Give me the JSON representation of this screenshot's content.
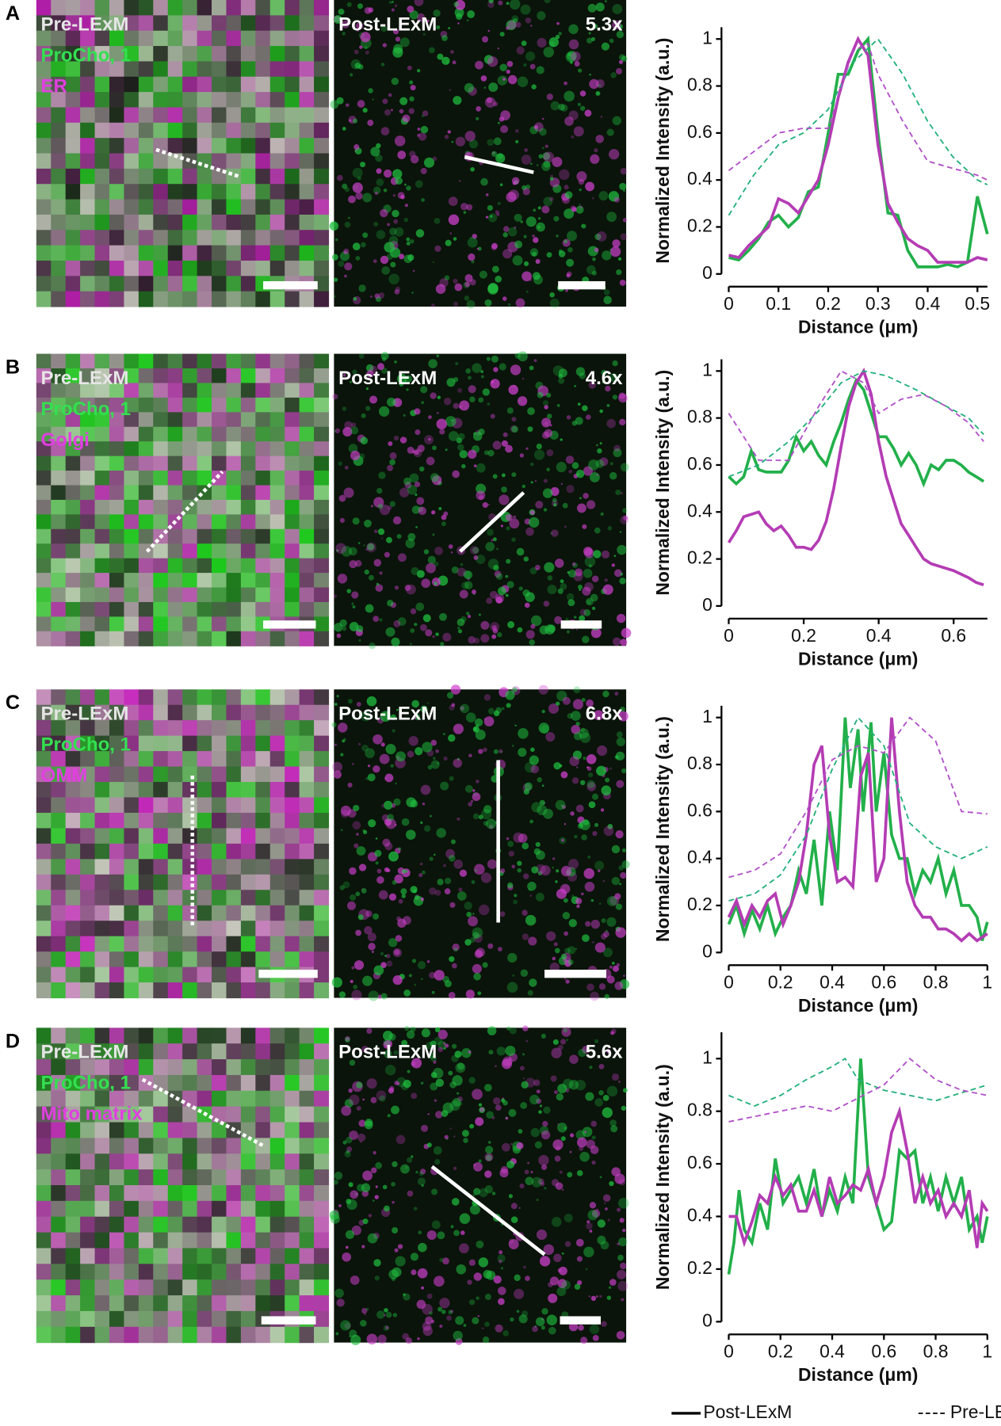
{
  "panels": [
    {
      "letter": "A",
      "pre": "Pre-LExM",
      "probe": "ProCho, 1",
      "target": "ER",
      "post": "Post-LExM",
      "factor": "5.3x"
    },
    {
      "letter": "B",
      "pre": "Pre-LExM",
      "probe": "ProCho, 1",
      "target": "Golgi",
      "post": "Post-LExM",
      "factor": "4.6x"
    },
    {
      "letter": "C",
      "pre": "Pre-LExM",
      "probe": "ProCho, 1",
      "target": "OMM",
      "post": "Post-LExM",
      "factor": "6.8x"
    },
    {
      "letter": "D",
      "pre": "Pre-LExM",
      "probe": "ProCho, 1",
      "target": "Mito matrix",
      "post": "Post-LExM",
      "factor": "5.6x"
    }
  ],
  "legend": [
    {
      "label": "Post-LExM",
      "dash": false
    },
    {
      "label": "Pre-LExM",
      "dash": true
    }
  ],
  "chart_data": [
    {
      "type": "line",
      "xlabel": "Distance (μm)",
      "ylabel": "Normalized Intensity (a.u.)",
      "xlim": [
        0,
        0.52
      ],
      "ylim": [
        0,
        1.05
      ],
      "xticks": [
        0,
        0.1,
        0.2,
        0.3,
        0.4,
        0.5
      ],
      "yticks": [
        0,
        0.2,
        0.4,
        0.6,
        0.8,
        1
      ],
      "series": [
        {
          "color": "#22b04a",
          "dash": false,
          "x": [
            0,
            0.02,
            0.04,
            0.06,
            0.08,
            0.1,
            0.12,
            0.14,
            0.16,
            0.18,
            0.2,
            0.22,
            0.24,
            0.26,
            0.28,
            0.3,
            0.32,
            0.34,
            0.36,
            0.38,
            0.4,
            0.42,
            0.44,
            0.46,
            0.48,
            0.5,
            0.52
          ],
          "values": [
            0.07,
            0.06,
            0.1,
            0.15,
            0.22,
            0.25,
            0.2,
            0.24,
            0.35,
            0.37,
            0.6,
            0.85,
            0.85,
            0.95,
            1.0,
            0.6,
            0.26,
            0.25,
            0.1,
            0.03,
            0.03,
            0.03,
            0.04,
            0.03,
            0.05,
            0.33,
            0.17
          ]
        },
        {
          "color": "#b43cb4",
          "dash": false,
          "x": [
            0,
            0.02,
            0.04,
            0.06,
            0.08,
            0.1,
            0.12,
            0.14,
            0.16,
            0.18,
            0.2,
            0.22,
            0.24,
            0.26,
            0.28,
            0.3,
            0.32,
            0.34,
            0.36,
            0.38,
            0.4,
            0.42,
            0.44,
            0.46,
            0.48,
            0.5,
            0.52
          ],
          "values": [
            0.08,
            0.07,
            0.12,
            0.16,
            0.2,
            0.32,
            0.3,
            0.26,
            0.33,
            0.4,
            0.55,
            0.75,
            0.9,
            1.0,
            0.93,
            0.55,
            0.3,
            0.22,
            0.15,
            0.12,
            0.1,
            0.05,
            0.05,
            0.05,
            0.05,
            0.07,
            0.06
          ]
        },
        {
          "color": "#22b07a",
          "dash": true,
          "x": [
            0,
            0.05,
            0.1,
            0.15,
            0.2,
            0.25,
            0.3,
            0.35,
            0.4,
            0.45,
            0.5,
            0.52
          ],
          "values": [
            0.25,
            0.42,
            0.55,
            0.6,
            0.7,
            0.9,
            1.0,
            0.85,
            0.65,
            0.5,
            0.4,
            0.38
          ]
        },
        {
          "color": "#b050c8",
          "dash": true,
          "x": [
            0,
            0.05,
            0.1,
            0.15,
            0.2,
            0.25,
            0.28,
            0.3,
            0.35,
            0.4,
            0.45,
            0.5,
            0.52
          ],
          "values": [
            0.44,
            0.52,
            0.6,
            0.62,
            0.62,
            0.95,
            0.98,
            0.85,
            0.65,
            0.48,
            0.45,
            0.42,
            0.4
          ]
        }
      ]
    },
    {
      "type": "line",
      "xlabel": "Distance (μm)",
      "ylabel": "Normalized Intensity (a.u.)",
      "xlim": [
        0,
        0.69
      ],
      "ylim": [
        0,
        1.05
      ],
      "xticks": [
        0,
        0.2,
        0.4,
        0.6
      ],
      "yticks": [
        0,
        0.2,
        0.4,
        0.6,
        0.8,
        1
      ],
      "series": [
        {
          "color": "#22b04a",
          "dash": false,
          "x": [
            0,
            0.02,
            0.04,
            0.06,
            0.08,
            0.1,
            0.12,
            0.14,
            0.16,
            0.18,
            0.2,
            0.22,
            0.24,
            0.26,
            0.28,
            0.3,
            0.32,
            0.34,
            0.36,
            0.38,
            0.4,
            0.42,
            0.44,
            0.46,
            0.48,
            0.5,
            0.52,
            0.54,
            0.56,
            0.58,
            0.6,
            0.62,
            0.64,
            0.66,
            0.68
          ],
          "values": [
            0.55,
            0.52,
            0.55,
            0.66,
            0.58,
            0.57,
            0.57,
            0.57,
            0.62,
            0.72,
            0.66,
            0.7,
            0.64,
            0.6,
            0.7,
            0.78,
            0.88,
            0.96,
            0.92,
            0.82,
            0.72,
            0.72,
            0.67,
            0.6,
            0.65,
            0.6,
            0.52,
            0.6,
            0.58,
            0.62,
            0.62,
            0.6,
            0.57,
            0.55,
            0.53
          ]
        },
        {
          "color": "#b43cb4",
          "dash": false,
          "x": [
            0,
            0.02,
            0.04,
            0.06,
            0.08,
            0.1,
            0.12,
            0.14,
            0.16,
            0.18,
            0.2,
            0.22,
            0.24,
            0.26,
            0.28,
            0.3,
            0.32,
            0.34,
            0.36,
            0.38,
            0.4,
            0.42,
            0.44,
            0.46,
            0.48,
            0.5,
            0.52,
            0.54,
            0.56,
            0.6,
            0.64,
            0.66,
            0.68
          ],
          "values": [
            0.27,
            0.32,
            0.38,
            0.39,
            0.4,
            0.35,
            0.32,
            0.34,
            0.3,
            0.25,
            0.25,
            0.24,
            0.28,
            0.36,
            0.5,
            0.68,
            0.85,
            0.95,
            1.0,
            0.9,
            0.7,
            0.55,
            0.45,
            0.35,
            0.3,
            0.25,
            0.2,
            0.18,
            0.17,
            0.15,
            0.12,
            0.1,
            0.09
          ]
        },
        {
          "color": "#22b07a",
          "dash": true,
          "x": [
            0,
            0.08,
            0.16,
            0.24,
            0.3,
            0.36,
            0.42,
            0.5,
            0.58,
            0.64,
            0.68
          ],
          "values": [
            0.55,
            0.6,
            0.7,
            0.83,
            0.95,
            1.0,
            0.98,
            0.92,
            0.85,
            0.8,
            0.73
          ]
        },
        {
          "color": "#b050c8",
          "dash": true,
          "x": [
            0,
            0.08,
            0.16,
            0.24,
            0.3,
            0.36,
            0.4,
            0.46,
            0.52,
            0.58,
            0.64,
            0.68
          ],
          "values": [
            0.82,
            0.62,
            0.62,
            0.85,
            1.0,
            0.95,
            0.82,
            0.88,
            0.9,
            0.85,
            0.78,
            0.7
          ]
        }
      ]
    },
    {
      "type": "line",
      "xlabel": "Distance (μm)",
      "ylabel": "Normalized Intensity (a.u.)",
      "xlim": [
        0,
        1
      ],
      "ylim": [
        0,
        1.05
      ],
      "xticks": [
        0,
        0.2,
        0.4,
        0.6,
        0.8,
        1
      ],
      "yticks": [
        0,
        0.2,
        0.4,
        0.6,
        0.8,
        1
      ],
      "series": [
        {
          "color": "#22b04a",
          "dash": false,
          "x": [
            0,
            0.03,
            0.06,
            0.09,
            0.12,
            0.15,
            0.18,
            0.21,
            0.24,
            0.27,
            0.3,
            0.33,
            0.36,
            0.39,
            0.42,
            0.45,
            0.47,
            0.5,
            0.52,
            0.55,
            0.57,
            0.6,
            0.63,
            0.66,
            0.69,
            0.72,
            0.75,
            0.78,
            0.81,
            0.84,
            0.87,
            0.9,
            0.93,
            0.96,
            0.98,
            1
          ],
          "values": [
            0.12,
            0.2,
            0.08,
            0.18,
            0.1,
            0.2,
            0.08,
            0.15,
            0.2,
            0.35,
            0.25,
            0.48,
            0.2,
            0.6,
            0.35,
            1.0,
            0.7,
            0.95,
            0.6,
            0.98,
            0.6,
            0.85,
            0.5,
            0.4,
            0.4,
            0.25,
            0.35,
            0.3,
            0.4,
            0.25,
            0.35,
            0.2,
            0.2,
            0.15,
            0.05,
            0.13
          ]
        },
        {
          "color": "#b43cb4",
          "dash": false,
          "x": [
            0,
            0.03,
            0.06,
            0.09,
            0.12,
            0.15,
            0.18,
            0.21,
            0.24,
            0.27,
            0.3,
            0.33,
            0.36,
            0.39,
            0.42,
            0.45,
            0.48,
            0.51,
            0.54,
            0.57,
            0.6,
            0.63,
            0.66,
            0.69,
            0.72,
            0.75,
            0.78,
            0.81,
            0.84,
            0.87,
            0.9,
            0.93,
            0.96,
            1
          ],
          "values": [
            0.15,
            0.22,
            0.12,
            0.2,
            0.15,
            0.22,
            0.25,
            0.12,
            0.2,
            0.3,
            0.5,
            0.8,
            0.88,
            0.5,
            0.3,
            0.32,
            0.28,
            0.75,
            0.85,
            0.3,
            0.4,
            1.0,
            0.6,
            0.3,
            0.2,
            0.15,
            0.15,
            0.1,
            0.1,
            0.08,
            0.05,
            0.08,
            0.05,
            0.08
          ]
        },
        {
          "color": "#22b07a",
          "dash": true,
          "x": [
            0,
            0.1,
            0.2,
            0.3,
            0.4,
            0.5,
            0.6,
            0.7,
            0.8,
            0.9,
            1
          ],
          "values": [
            0.22,
            0.25,
            0.33,
            0.5,
            0.78,
            1.0,
            0.88,
            0.55,
            0.45,
            0.4,
            0.45
          ]
        },
        {
          "color": "#b050c8",
          "dash": true,
          "x": [
            0,
            0.1,
            0.2,
            0.3,
            0.4,
            0.5,
            0.6,
            0.7,
            0.8,
            0.9,
            1
          ],
          "values": [
            0.32,
            0.35,
            0.42,
            0.6,
            0.82,
            0.88,
            0.85,
            1.0,
            0.9,
            0.6,
            0.59
          ]
        }
      ]
    },
    {
      "type": "line",
      "xlabel": "Distance (μm)",
      "ylabel": "Normalized Intensity (a.u.)",
      "xlim": [
        0,
        1
      ],
      "ylim": [
        0,
        1.1
      ],
      "xticks": [
        0,
        0.2,
        0.4,
        0.6,
        0.8,
        1
      ],
      "yticks": [
        0,
        0.2,
        0.4,
        0.6,
        0.8,
        1
      ],
      "series": [
        {
          "color": "#22b04a",
          "dash": false,
          "x": [
            0,
            0.02,
            0.04,
            0.06,
            0.09,
            0.12,
            0.15,
            0.18,
            0.21,
            0.24,
            0.27,
            0.3,
            0.33,
            0.36,
            0.39,
            0.42,
            0.45,
            0.48,
            0.51,
            0.54,
            0.57,
            0.6,
            0.63,
            0.66,
            0.69,
            0.72,
            0.75,
            0.78,
            0.81,
            0.84,
            0.87,
            0.9,
            0.93,
            0.96,
            0.98,
            1
          ],
          "values": [
            0.18,
            0.3,
            0.5,
            0.35,
            0.3,
            0.45,
            0.35,
            0.62,
            0.45,
            0.5,
            0.55,
            0.45,
            0.58,
            0.4,
            0.5,
            0.42,
            0.55,
            0.45,
            1.0,
            0.55,
            0.45,
            0.35,
            0.38,
            0.65,
            0.62,
            0.65,
            0.45,
            0.55,
            0.42,
            0.55,
            0.45,
            0.55,
            0.35,
            0.4,
            0.3,
            0.4
          ]
        },
        {
          "color": "#b43cb4",
          "dash": false,
          "x": [
            0,
            0.03,
            0.06,
            0.09,
            0.12,
            0.15,
            0.18,
            0.21,
            0.24,
            0.27,
            0.3,
            0.33,
            0.36,
            0.39,
            0.42,
            0.45,
            0.48,
            0.51,
            0.54,
            0.57,
            0.6,
            0.63,
            0.66,
            0.69,
            0.72,
            0.75,
            0.78,
            0.81,
            0.84,
            0.87,
            0.9,
            0.93,
            0.96,
            0.98,
            1
          ],
          "values": [
            0.4,
            0.4,
            0.3,
            0.38,
            0.48,
            0.45,
            0.55,
            0.48,
            0.52,
            0.42,
            0.42,
            0.5,
            0.4,
            0.55,
            0.45,
            0.48,
            0.52,
            0.5,
            0.58,
            0.45,
            0.55,
            0.72,
            0.8,
            0.65,
            0.45,
            0.55,
            0.45,
            0.5,
            0.4,
            0.45,
            0.4,
            0.5,
            0.28,
            0.45,
            0.42
          ]
        },
        {
          "color": "#22b07a",
          "dash": true,
          "x": [
            0,
            0.1,
            0.2,
            0.3,
            0.4,
            0.45,
            0.5,
            0.6,
            0.7,
            0.8,
            0.9,
            1
          ],
          "values": [
            0.86,
            0.82,
            0.86,
            0.92,
            0.97,
            1.0,
            0.92,
            0.88,
            0.86,
            0.84,
            0.87,
            0.9
          ]
        },
        {
          "color": "#b050c8",
          "dash": true,
          "x": [
            0,
            0.1,
            0.2,
            0.3,
            0.4,
            0.5,
            0.6,
            0.7,
            0.8,
            0.9,
            1
          ],
          "values": [
            0.76,
            0.78,
            0.8,
            0.82,
            0.8,
            0.85,
            0.9,
            1.0,
            0.92,
            0.88,
            0.86
          ]
        }
      ]
    }
  ]
}
